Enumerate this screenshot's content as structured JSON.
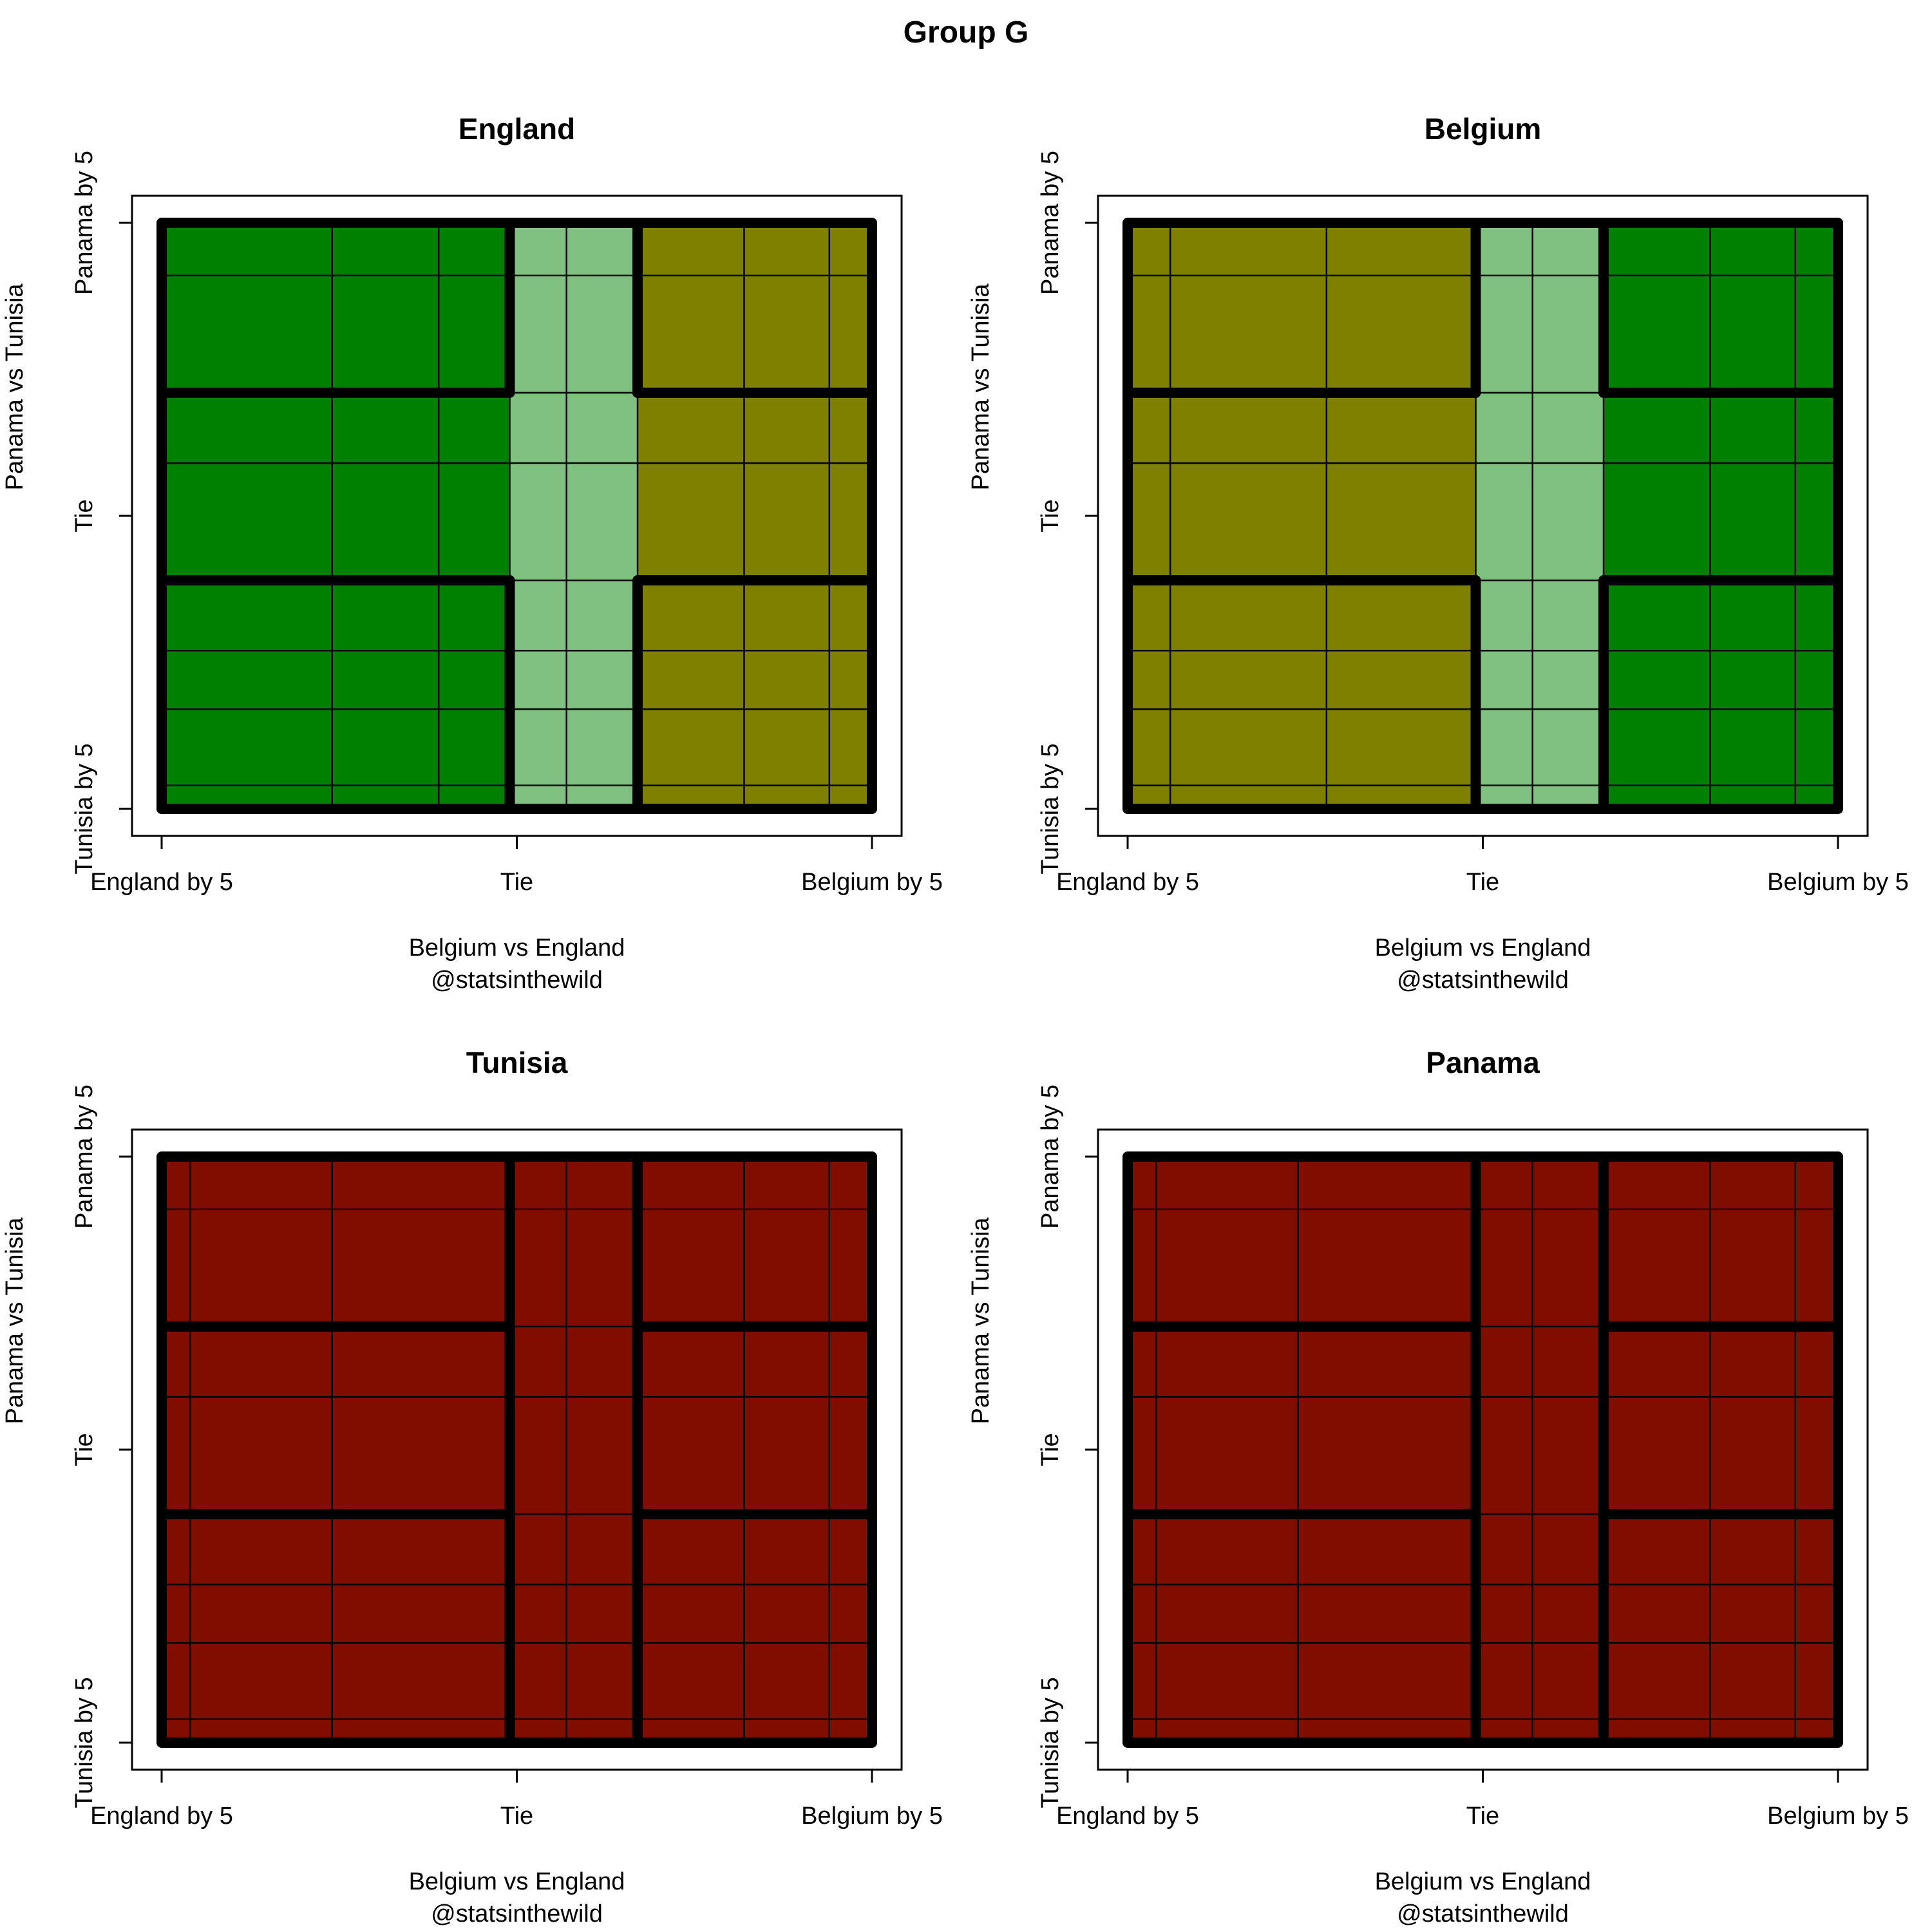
{
  "title": "Group G",
  "colors": {
    "England_wins": "#008000",
    "Tie_zone": "#80c080",
    "Belgium_wins": "#808000",
    "eliminated": "#800e00"
  },
  "chart_data": [
    {
      "type": "heatmap",
      "title": "England",
      "xlabel": "Belgium vs England",
      "credit": "@statsinthewild",
      "ylabel": "Panama vs Tunisia",
      "x_ticks": [
        "England by 5",
        "Tie",
        "Belgium by 5"
      ],
      "y_ticks": [
        "Tunisia by 5",
        "Tie",
        "Panama by 5"
      ],
      "x_breaks": [
        -5,
        -2.6,
        -1.1,
        -0.1,
        0.7,
        1.7,
        3.2,
        4.4,
        5
      ],
      "y_breaks": [
        -5,
        -4.6,
        -3.3,
        -2.3,
        -1.1,
        0.9,
        2.1,
        4.1,
        5
      ],
      "x_regions": [
        -5,
        -0.1,
        1.7,
        5
      ],
      "y_regions": [
        -5,
        -1.1,
        2.1,
        5
      ],
      "region_colors": [
        [
          "#008000",
          "#80c080",
          "#808000"
        ],
        [
          "#008000",
          "#80c080",
          "#808000"
        ],
        [
          "#008000",
          "#80c080",
          "#808000"
        ]
      ],
      "thick_segments": [
        [
          [
            -5,
            2.1
          ],
          [
            -0.1,
            2.1
          ]
        ],
        [
          [
            -0.1,
            2.1
          ],
          [
            -0.1,
            5
          ]
        ],
        [
          [
            1.7,
            2.1
          ],
          [
            5,
            2.1
          ]
        ],
        [
          [
            1.7,
            2.1
          ],
          [
            1.7,
            5
          ]
        ],
        [
          [
            -5,
            -1.1
          ],
          [
            -0.1,
            -1.1
          ]
        ],
        [
          [
            -0.1,
            -5
          ],
          [
            -0.1,
            -1.1
          ]
        ],
        [
          [
            1.7,
            -1.1
          ],
          [
            5,
            -1.1
          ]
        ],
        [
          [
            1.7,
            -5
          ],
          [
            1.7,
            -1.1
          ]
        ]
      ]
    },
    {
      "type": "heatmap",
      "title": "Belgium",
      "xlabel": "Belgium vs England",
      "credit": "@statsinthewild",
      "ylabel": "Panama vs Tunisia",
      "x_ticks": [
        "England by 5",
        "Tie",
        "Belgium by 5"
      ],
      "y_ticks": [
        "Tunisia by 5",
        "Tie",
        "Panama by 5"
      ],
      "x_breaks": [
        -5,
        -4.4,
        -2.2,
        -0.1,
        0.7,
        1.7,
        3.2,
        4.4,
        5
      ],
      "y_breaks": [
        -5,
        -4.6,
        -3.3,
        -2.3,
        -1.1,
        0.9,
        2.1,
        4.1,
        5
      ],
      "x_regions": [
        -5,
        -0.1,
        1.7,
        5
      ],
      "y_regions": [
        -5,
        -1.1,
        2.1,
        5
      ],
      "region_colors": [
        [
          "#808000",
          "#80c080",
          "#008000"
        ],
        [
          "#808000",
          "#80c080",
          "#008000"
        ],
        [
          "#808000",
          "#80c080",
          "#008000"
        ]
      ],
      "thick_segments": [
        [
          [
            -5,
            2.1
          ],
          [
            -0.1,
            2.1
          ]
        ],
        [
          [
            -0.1,
            2.1
          ],
          [
            -0.1,
            5
          ]
        ],
        [
          [
            1.7,
            2.1
          ],
          [
            5,
            2.1
          ]
        ],
        [
          [
            1.7,
            2.1
          ],
          [
            1.7,
            5
          ]
        ],
        [
          [
            -5,
            -1.1
          ],
          [
            -0.1,
            -1.1
          ]
        ],
        [
          [
            -0.1,
            -5
          ],
          [
            -0.1,
            -1.1
          ]
        ],
        [
          [
            1.7,
            -1.1
          ],
          [
            5,
            -1.1
          ]
        ],
        [
          [
            1.7,
            -5
          ],
          [
            1.7,
            -1.1
          ]
        ]
      ]
    },
    {
      "type": "heatmap",
      "title": "Tunisia",
      "xlabel": "Belgium vs England",
      "credit": "@statsinthewild",
      "ylabel": "Panama vs Tunisia",
      "x_ticks": [
        "England by 5",
        "Tie",
        "Belgium by 5"
      ],
      "y_ticks": [
        "Tunisia by 5",
        "Tie",
        "Panama by 5"
      ],
      "x_breaks": [
        -5,
        -4.6,
        -2.6,
        -0.1,
        0.7,
        1.7,
        3.2,
        4.4,
        5
      ],
      "y_breaks": [
        -5,
        -4.6,
        -3.3,
        -2.3,
        -1.1,
        0.9,
        2.1,
        4.1,
        5
      ],
      "x_regions": [
        -5,
        -0.1,
        1.7,
        5
      ],
      "y_regions": [
        -5,
        -1.1,
        2.1,
        5
      ],
      "region_colors": [
        [
          "#800e00",
          "#800e00",
          "#800e00"
        ],
        [
          "#800e00",
          "#800e00",
          "#800e00"
        ],
        [
          "#800e00",
          "#800e00",
          "#800e00"
        ]
      ],
      "thick_segments": [
        [
          [
            -5,
            2.1
          ],
          [
            -0.1,
            2.1
          ]
        ],
        [
          [
            -0.1,
            2.1
          ],
          [
            -0.1,
            5
          ]
        ],
        [
          [
            1.7,
            2.1
          ],
          [
            5,
            2.1
          ]
        ],
        [
          [
            1.7,
            2.1
          ],
          [
            1.7,
            5
          ]
        ],
        [
          [
            -5,
            -1.1
          ],
          [
            -0.1,
            -1.1
          ]
        ],
        [
          [
            -0.1,
            -5
          ],
          [
            -0.1,
            -1.1
          ]
        ],
        [
          [
            1.7,
            -1.1
          ],
          [
            5,
            -1.1
          ]
        ],
        [
          [
            1.7,
            -5
          ],
          [
            1.7,
            -1.1
          ]
        ],
        [
          [
            -0.1,
            -5
          ],
          [
            -0.1,
            5
          ]
        ],
        [
          [
            1.7,
            -5
          ],
          [
            1.7,
            5
          ]
        ]
      ]
    },
    {
      "type": "heatmap",
      "title": "Panama",
      "xlabel": "Belgium vs England",
      "credit": "@statsinthewild",
      "ylabel": "Panama vs Tunisia",
      "x_ticks": [
        "England by 5",
        "Tie",
        "Belgium by 5"
      ],
      "y_ticks": [
        "Tunisia by 5",
        "Tie",
        "Panama by 5"
      ],
      "x_breaks": [
        -5,
        -4.6,
        -2.6,
        -0.1,
        0.7,
        1.7,
        3.2,
        4.4,
        5
      ],
      "y_breaks": [
        -5,
        -4.6,
        -3.3,
        -2.3,
        -1.1,
        0.9,
        2.1,
        4.1,
        5
      ],
      "x_regions": [
        -5,
        -0.1,
        1.7,
        5
      ],
      "y_regions": [
        -5,
        -1.1,
        2.1,
        5
      ],
      "region_colors": [
        [
          "#800e00",
          "#800e00",
          "#800e00"
        ],
        [
          "#800e00",
          "#800e00",
          "#800e00"
        ],
        [
          "#800e00",
          "#800e00",
          "#800e00"
        ]
      ],
      "thick_segments": [
        [
          [
            -5,
            2.1
          ],
          [
            -0.1,
            2.1
          ]
        ],
        [
          [
            -0.1,
            2.1
          ],
          [
            -0.1,
            5
          ]
        ],
        [
          [
            1.7,
            2.1
          ],
          [
            5,
            2.1
          ]
        ],
        [
          [
            1.7,
            2.1
          ],
          [
            1.7,
            5
          ]
        ],
        [
          [
            -5,
            -1.1
          ],
          [
            -0.1,
            -1.1
          ]
        ],
        [
          [
            -0.1,
            -5
          ],
          [
            -0.1,
            -1.1
          ]
        ],
        [
          [
            1.7,
            -1.1
          ],
          [
            5,
            -1.1
          ]
        ],
        [
          [
            1.7,
            -5
          ],
          [
            1.7,
            -1.1
          ]
        ],
        [
          [
            -0.1,
            -5
          ],
          [
            -0.1,
            5
          ]
        ],
        [
          [
            1.7,
            -5
          ],
          [
            1.7,
            5
          ]
        ]
      ]
    }
  ]
}
